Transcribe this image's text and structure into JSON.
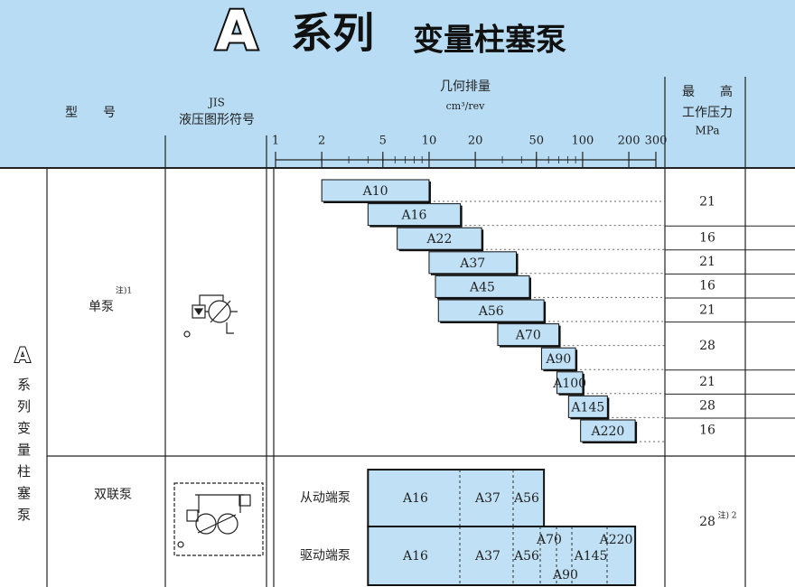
{
  "header": {
    "logo": "A",
    "series": "系列",
    "title": "变量柱塞泵"
  },
  "columns": {
    "model": "型　　号",
    "symbol": [
      "JIS",
      "液压图形符号"
    ],
    "displacement": "几何排量",
    "unit": "cm³/rev",
    "pressure": [
      "最　　高",
      "工作压力",
      "MPa"
    ]
  },
  "scale": {
    "log": true,
    "xlim": [
      1,
      300
    ],
    "xticks": [
      1,
      2,
      5,
      10,
      20,
      50,
      100,
      200,
      300
    ]
  },
  "side_label": {
    "logo": "A",
    "text": "系列变量柱塞泵"
  },
  "single": {
    "name": "单泵",
    "note": "注)1",
    "bars": [
      {
        "label": "A10",
        "range": [
          2,
          10
        ]
      },
      {
        "label": "A16",
        "range": [
          4,
          16
        ]
      },
      {
        "label": "A22",
        "range": [
          6.2,
          22
        ]
      },
      {
        "label": "A37",
        "range": [
          10,
          37
        ]
      },
      {
        "label": "A45",
        "range": [
          11,
          45
        ]
      },
      {
        "label": "A56",
        "range": [
          11.5,
          56
        ]
      },
      {
        "label": "A70",
        "range": [
          28,
          70
        ]
      },
      {
        "label": "A90",
        "range": [
          54,
          90
        ]
      },
      {
        "label": "A100",
        "range": [
          68,
          100
        ]
      },
      {
        "label": "A145",
        "range": [
          81,
          145
        ]
      },
      {
        "label": "A220",
        "range": [
          97,
          220
        ]
      }
    ],
    "pressures": [
      21,
      16,
      21,
      16,
      21,
      28,
      21,
      28,
      16
    ]
  },
  "double": {
    "name": "双联泵",
    "pressure": 28,
    "note": "注) 2",
    "driven": {
      "label": "从动端泵",
      "range": [
        4,
        56
      ],
      "models": [
        "A16",
        "A37",
        "A56"
      ]
    },
    "driving": {
      "label": "驱动端泵",
      "range": [
        4,
        220
      ],
      "models": [
        "A16",
        "A37",
        "A56",
        "A70",
        "A145",
        "A220",
        "A90"
      ]
    }
  }
}
